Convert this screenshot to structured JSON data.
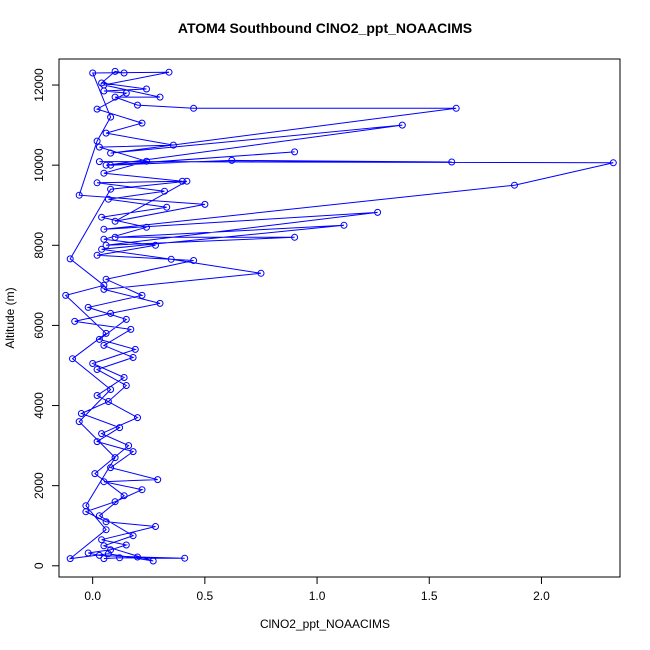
{
  "chart_data": {
    "type": "scatter",
    "title": "ATOM4 Southbound ClNO2_ppt_NOAACIMS",
    "xlabel": "ClNO2_ppt_NOAACIMS",
    "ylabel": "Altitude (m)",
    "xlim": [
      -0.15,
      2.35
    ],
    "ylim": [
      -280,
      12650
    ],
    "xticks": [
      0.0,
      0.5,
      1.0,
      1.5,
      2.0
    ],
    "xtick_labels": [
      "0.0",
      "0.5",
      "1.0",
      "1.5",
      "2.0"
    ],
    "yticks": [
      0,
      2000,
      4000,
      6000,
      8000,
      10000,
      12000
    ],
    "ytick_labels": [
      "0",
      "2000",
      "4000",
      "6000",
      "8000",
      "10000",
      "12000"
    ],
    "grid": false,
    "legend": "none",
    "marker": "open-circle",
    "connected": true,
    "color": "#0000ff",
    "series": [
      {
        "points": [
          [
            0.05,
            180
          ],
          [
            0.12,
            200
          ],
          [
            0.41,
            190
          ],
          [
            0.2,
            220
          ],
          [
            0.03,
            260
          ],
          [
            -0.02,
            320
          ],
          [
            0.08,
            400
          ],
          [
            0.15,
            520
          ],
          [
            0.04,
            650
          ],
          [
            0.28,
            980
          ],
          [
            0.06,
            1100
          ],
          [
            -0.03,
            1350
          ],
          [
            0.1,
            1600
          ],
          [
            0.22,
            1900
          ],
          [
            0.05,
            2100
          ],
          [
            0.29,
            2150
          ],
          [
            0.08,
            2450
          ],
          [
            0.18,
            2850
          ],
          [
            0.02,
            3100
          ],
          [
            0.12,
            3450
          ],
          [
            -0.05,
            3800
          ],
          [
            0.07,
            4100
          ],
          [
            0.15,
            4500
          ],
          [
            0.02,
            4900
          ],
          [
            0.18,
            5200
          ],
          [
            0.05,
            5500
          ],
          [
            0.17,
            5900
          ],
          [
            -0.08,
            6100
          ],
          [
            0.08,
            6300
          ],
          [
            0.3,
            6550
          ],
          [
            0.05,
            6900
          ],
          [
            0.75,
            7300
          ],
          [
            0.35,
            7650
          ],
          [
            0.04,
            7900
          ],
          [
            1.12,
            8500
          ],
          [
            0.1,
            8200
          ],
          [
            0.9,
            8200
          ],
          [
            0.06,
            8000
          ],
          [
            1.27,
            8820
          ],
          [
            0.05,
            8400
          ],
          [
            1.88,
            9500
          ],
          [
            2.32,
            10060
          ],
          [
            0.03,
            10090
          ],
          [
            1.6,
            10080
          ],
          [
            0.62,
            10120
          ],
          [
            0.08,
            10000
          ],
          [
            0.9,
            10330
          ],
          [
            0.06,
            10000
          ],
          [
            1.38,
            11000
          ],
          [
            0.08,
            10300
          ],
          [
            1.62,
            11420
          ],
          [
            0.45,
            11420
          ],
          [
            0.2,
            11500
          ],
          [
            0.1,
            11700
          ],
          [
            0.3,
            11700
          ],
          [
            0.05,
            12000
          ],
          [
            0.34,
            12320
          ],
          [
            0.0,
            12300
          ],
          [
            0.08,
            11200
          ],
          [
            0.02,
            10600
          ],
          [
            -0.06,
            9250
          ],
          [
            0.5,
            9020
          ],
          [
            0.1,
            8600
          ],
          [
            0.42,
            9600
          ],
          [
            0.08,
            9400
          ],
          [
            -0.1,
            7660
          ],
          [
            0.05,
            7000
          ],
          [
            -0.12,
            6750
          ],
          [
            0.06,
            5800
          ],
          [
            -0.09,
            5170
          ],
          [
            0.08,
            4400
          ],
          [
            -0.06,
            3600
          ],
          [
            0.1,
            2700
          ],
          [
            -0.03,
            1500
          ],
          [
            0.06,
            900
          ],
          [
            -0.1,
            180
          ],
          [
            0.07,
            300
          ],
          [
            0.27,
            120
          ],
          [
            0.05,
            500
          ],
          [
            0.18,
            750
          ],
          [
            0.03,
            1250
          ],
          [
            0.14,
            1750
          ],
          [
            0.01,
            2300
          ],
          [
            0.16,
            3000
          ],
          [
            0.04,
            3300
          ],
          [
            0.2,
            3700
          ],
          [
            0.02,
            4250
          ],
          [
            0.14,
            4700
          ],
          [
            0.0,
            5050
          ],
          [
            0.19,
            5400
          ],
          [
            0.03,
            5650
          ],
          [
            0.15,
            6150
          ],
          [
            -0.02,
            6450
          ],
          [
            0.22,
            6750
          ],
          [
            0.06,
            7150
          ],
          [
            0.45,
            7620
          ],
          [
            0.02,
            7750
          ],
          [
            0.28,
            8000
          ],
          [
            0.05,
            8150
          ],
          [
            0.24,
            8450
          ],
          [
            0.04,
            8700
          ],
          [
            0.33,
            8950
          ],
          [
            0.07,
            9150
          ],
          [
            0.32,
            9350
          ],
          [
            0.02,
            9560
          ],
          [
            0.4,
            9600
          ],
          [
            0.05,
            9800
          ],
          [
            0.24,
            10100
          ],
          [
            0.03,
            10450
          ],
          [
            0.36,
            10500
          ],
          [
            0.06,
            10800
          ],
          [
            0.22,
            11050
          ],
          [
            0.02,
            11400
          ],
          [
            0.15,
            11800
          ],
          [
            0.05,
            11850
          ],
          [
            0.24,
            11900
          ],
          [
            0.04,
            12050
          ],
          [
            0.1,
            12340
          ],
          [
            0.14,
            12300
          ]
        ]
      }
    ]
  }
}
